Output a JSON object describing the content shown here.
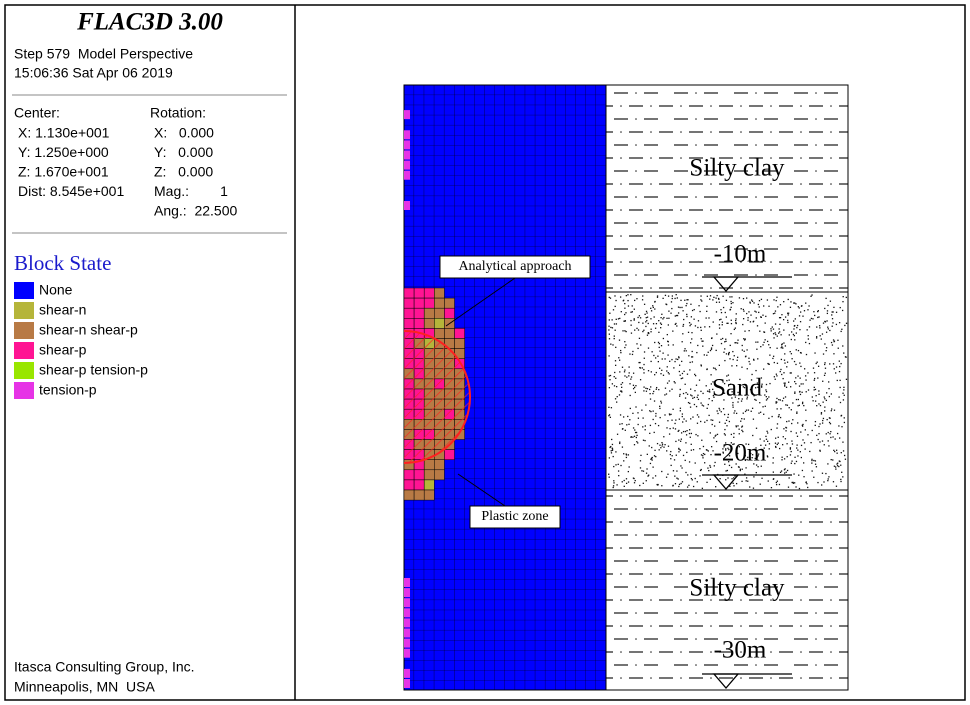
{
  "header": {
    "title": "FLAC3D 3.00",
    "step": "Step 579  Model Perspective",
    "timestamp": "15:06:36 Sat Apr 06 2019"
  },
  "view": {
    "center_label": "Center:",
    "center": [
      "X: 1.130e+001",
      "Y: 1.250e+000",
      "Z: 1.670e+001",
      "Dist: 8.545e+001"
    ],
    "rotation_label": "Rotation:",
    "rotation": [
      "X:   0.000",
      "Y:   0.000",
      "Z:   0.000",
      "Mag.:        1",
      "Ang.:  22.500"
    ]
  },
  "legend": {
    "title": "Block State",
    "items": [
      {
        "label": "None",
        "color": "#0000ff"
      },
      {
        "label": "shear-n",
        "color": "#b5b53a"
      },
      {
        "label": "shear-n shear-p",
        "color": "#b87a45"
      },
      {
        "label": "shear-p",
        "color": "#ff1493"
      },
      {
        "label": "shear-p tension-p",
        "color": "#99e600"
      },
      {
        "label": "tension-p",
        "color": "#e633e6"
      }
    ]
  },
  "footer": [
    "Itasca Consulting Group, Inc.",
    "Minneapolis, MN  USA"
  ],
  "annotations": [
    "Analytical approach",
    "Plastic zone"
  ],
  "layers": [
    {
      "name": "Silty clay",
      "depth": "-10m"
    },
    {
      "name": "Sand",
      "depth": "-20m"
    },
    {
      "name": "Silty clay",
      "depth": "-30m"
    }
  ]
}
